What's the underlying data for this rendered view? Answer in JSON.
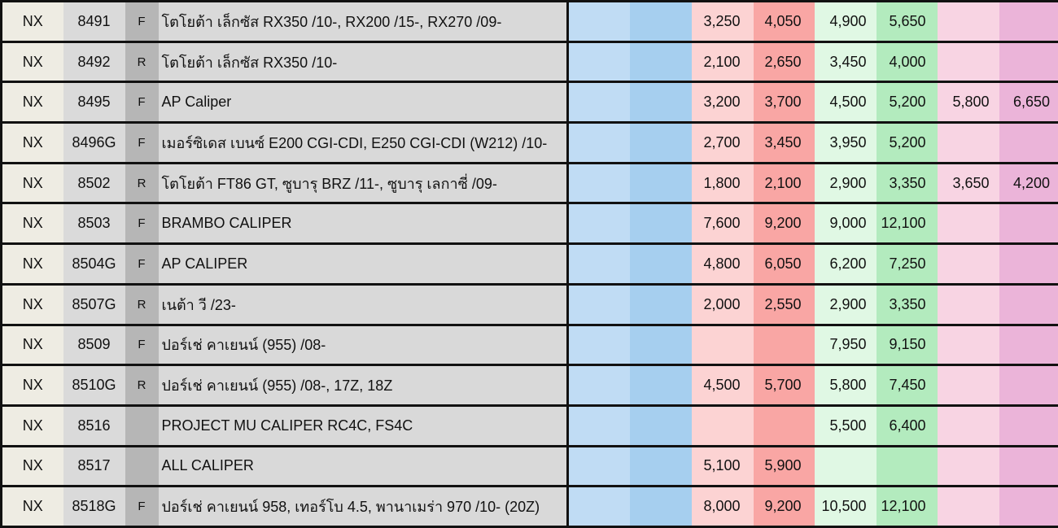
{
  "columns": [
    "brand",
    "code",
    "position",
    "description",
    "blank_1",
    "blank_2",
    "price_1",
    "price_2",
    "price_3",
    "price_4",
    "price_5",
    "price_6"
  ],
  "rows": [
    {
      "brand": "NX",
      "code": "8491",
      "position": "F",
      "description": "โตโยต้า เล็กซัส RX350 /10-, RX200 /15-, RX270 /09-",
      "blank_1": "",
      "blank_2": "",
      "price_1": "3,250",
      "price_2": "4,050",
      "price_3": "4,900",
      "price_4": "5,650",
      "price_5": "",
      "price_6": ""
    },
    {
      "brand": "NX",
      "code": "8492",
      "position": "R",
      "description": "โตโยต้า เล็กซัส RX350 /10-",
      "blank_1": "",
      "blank_2": "",
      "price_1": "2,100",
      "price_2": "2,650",
      "price_3": "3,450",
      "price_4": "4,000",
      "price_5": "",
      "price_6": ""
    },
    {
      "brand": "NX",
      "code": "8495",
      "position": "F",
      "description": "AP Caliper",
      "blank_1": "",
      "blank_2": "",
      "price_1": "3,200",
      "price_2": "3,700",
      "price_3": "4,500",
      "price_4": "5,200",
      "price_5": "5,800",
      "price_6": "6,650"
    },
    {
      "brand": "NX",
      "code": "8496G",
      "position": "F",
      "description": "เมอร์ซิเดส เบนซ์ E200 CGI-CDI, E250 CGI-CDI (W212) /10-",
      "blank_1": "",
      "blank_2": "",
      "price_1": "2,700",
      "price_2": "3,450",
      "price_3": "3,950",
      "price_4": "5,200",
      "price_5": "",
      "price_6": ""
    },
    {
      "brand": "NX",
      "code": "8502",
      "position": "R",
      "description": "โตโยต้า FT86 GT, ซูบารุ BRZ /11-, ซูบารุ เลกาซี่ /09-",
      "blank_1": "",
      "blank_2": "",
      "price_1": "1,800",
      "price_2": "2,100",
      "price_3": "2,900",
      "price_4": "3,350",
      "price_5": "3,650",
      "price_6": "4,200"
    },
    {
      "brand": "NX",
      "code": "8503",
      "position": "F",
      "description": "BRAMBO CALIPER",
      "blank_1": "",
      "blank_2": "",
      "price_1": "7,600",
      "price_2": "9,200",
      "price_3": "9,000",
      "price_4": "12,100",
      "price_5": "",
      "price_6": ""
    },
    {
      "brand": "NX",
      "code": "8504G",
      "position": "F",
      "description": "AP CALIPER",
      "blank_1": "",
      "blank_2": "",
      "price_1": "4,800",
      "price_2": "6,050",
      "price_3": "6,200",
      "price_4": "7,250",
      "price_5": "",
      "price_6": ""
    },
    {
      "brand": "NX",
      "code": "8507G",
      "position": "R",
      "description": "เนต้า วี /23-",
      "blank_1": "",
      "blank_2": "",
      "price_1": "2,000",
      "price_2": "2,550",
      "price_3": "2,900",
      "price_4": "3,350",
      "price_5": "",
      "price_6": ""
    },
    {
      "brand": "NX",
      "code": "8509",
      "position": "F",
      "description": "ปอร์เช่ คาเยนน์ (955) /08-",
      "blank_1": "",
      "blank_2": "",
      "price_1": "",
      "price_2": "",
      "price_3": "7,950",
      "price_4": "9,150",
      "price_5": "",
      "price_6": ""
    },
    {
      "brand": "NX",
      "code": "8510G",
      "position": "R",
      "description": "ปอร์เช่ คาเยนน์ (955) /08-, 17Z, 18Z",
      "blank_1": "",
      "blank_2": "",
      "price_1": "4,500",
      "price_2": "5,700",
      "price_3": "5,800",
      "price_4": "7,450",
      "price_5": "",
      "price_6": ""
    },
    {
      "brand": "NX",
      "code": "8516",
      "position": "",
      "description": "PROJECT MU CALIPER RC4C, FS4C",
      "blank_1": "",
      "blank_2": "",
      "price_1": "",
      "price_2": "",
      "price_3": "5,500",
      "price_4": "6,400",
      "price_5": "",
      "price_6": ""
    },
    {
      "brand": "NX",
      "code": "8517",
      "position": "",
      "description": "ALL CALIPER",
      "blank_1": "",
      "blank_2": "",
      "price_1": "5,100",
      "price_2": "5,900",
      "price_3": "",
      "price_4": "",
      "price_5": "",
      "price_6": ""
    },
    {
      "brand": "NX",
      "code": "8518G",
      "position": "F",
      "description": "ปอร์เช่ คาเยนน์ 958, เทอร์โบ 4.5, พานาเมร่า 970 /10- (20Z)",
      "blank_1": "",
      "blank_2": "",
      "price_1": "8,000",
      "price_2": "9,200",
      "price_3": "10,500",
      "price_4": "12,100",
      "price_5": "",
      "price_6": ""
    }
  ]
}
